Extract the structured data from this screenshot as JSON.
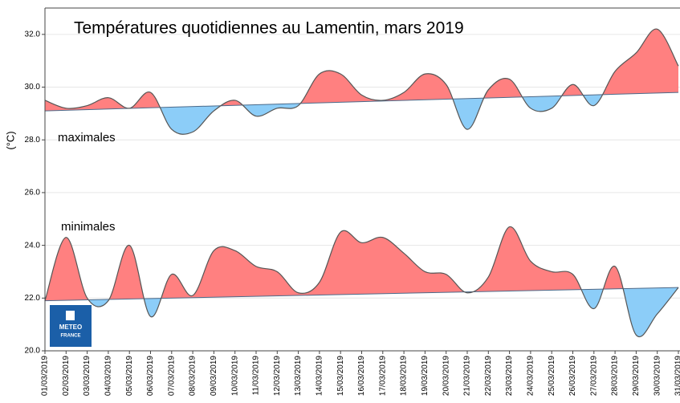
{
  "chart_data": {
    "type": "line",
    "title": "Températures quotidiennes au Lamentin, mars 2019",
    "y_label": "(°C)",
    "logo": [
      "METEO",
      "FRANCE"
    ],
    "categories": [
      "01/03/2019",
      "02/03/2019",
      "03/03/2019",
      "04/03/2019",
      "05/03/2019",
      "06/03/2019",
      "07/03/2019",
      "08/03/2019",
      "09/03/2019",
      "10/03/2019",
      "11/03/2019",
      "12/03/2019",
      "13/03/2019",
      "14/03/2019",
      "15/03/2019",
      "16/03/2019",
      "17/03/2019",
      "18/03/2019",
      "19/03/2019",
      "20/03/2019",
      "21/03/2019",
      "22/03/2019",
      "23/03/2019",
      "24/03/2019",
      "25/03/2019",
      "26/03/2019",
      "27/03/2019",
      "28/03/2019",
      "29/03/2019",
      "30/03/2019",
      "31/03/2019"
    ],
    "series": [
      {
        "name": "maximales",
        "color": "#ff8080",
        "below_color": "#8ccdf8",
        "values": [
          29.5,
          29.2,
          29.3,
          29.6,
          29.2,
          29.8,
          28.4,
          28.3,
          29.1,
          29.5,
          28.9,
          29.2,
          29.3,
          30.5,
          30.5,
          29.7,
          29.5,
          29.8,
          30.5,
          30.1,
          28.4,
          29.9,
          30.3,
          29.2,
          29.2,
          30.1,
          29.3,
          30.6,
          31.3,
          32.2,
          30.8
        ],
        "normal": [
          29.1,
          29.8
        ]
      },
      {
        "name": "minimales",
        "color": "#ff8080",
        "below_color": "#8ccdf8",
        "values": [
          21.9,
          24.3,
          22.0,
          21.9,
          24.0,
          21.3,
          22.9,
          22.1,
          23.8,
          23.8,
          23.2,
          23.0,
          22.2,
          22.6,
          24.5,
          24.1,
          24.3,
          23.7,
          23.0,
          22.9,
          22.2,
          22.8,
          24.7,
          23.4,
          23.0,
          22.9,
          21.6,
          23.2,
          20.6,
          21.4,
          22.4
        ],
        "normal": [
          21.9,
          22.4
        ]
      }
    ],
    "ylim": [
      20,
      33
    ],
    "yticks": [
      {
        "value": 20,
        "label": "20.0"
      },
      {
        "value": 22,
        "label": "22.0"
      },
      {
        "value": 24,
        "label": "24.0"
      },
      {
        "value": 26,
        "label": "26.0"
      },
      {
        "value": 28,
        "label": "28.0"
      },
      {
        "value": 30,
        "label": "30.0"
      },
      {
        "value": 32,
        "label": "32.0"
      }
    ],
    "grid": true
  }
}
